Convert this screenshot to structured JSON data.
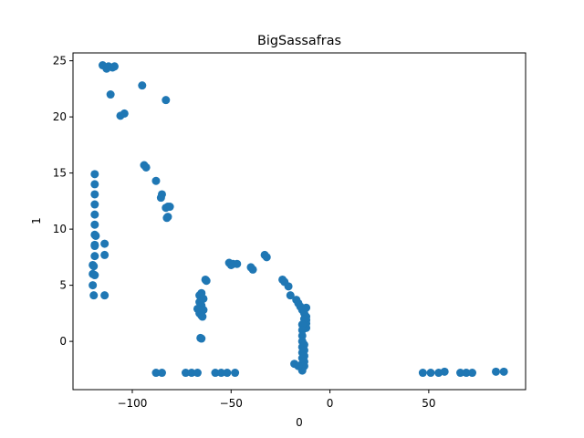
{
  "chart_data": {
    "type": "scatter",
    "title": "BigSassafras",
    "xlabel": "0",
    "ylabel": "1",
    "xlim": [
      -130,
      99
    ],
    "ylim": [
      -4.3,
      25.7
    ],
    "xticks": [
      -100,
      -50,
      0,
      50
    ],
    "yticks": [
      0,
      5,
      10,
      15,
      20,
      25
    ],
    "grid": false,
    "color": "#1f77b4",
    "points": [
      [
        -115,
        24.6
      ],
      [
        -113,
        24.3
      ],
      [
        -112,
        24.5
      ],
      [
        -110,
        24.4
      ],
      [
        -109,
        24.5
      ],
      [
        -111,
        22.0
      ],
      [
        -106,
        20.1
      ],
      [
        -104,
        20.3
      ],
      [
        -95,
        22.8
      ],
      [
        -83,
        21.5
      ],
      [
        -119,
        14.9
      ],
      [
        -119,
        14.0
      ],
      [
        -119,
        13.1
      ],
      [
        -119,
        12.2
      ],
      [
        -119,
        11.3
      ],
      [
        -119,
        10.4
      ],
      [
        -119,
        9.5
      ],
      [
        -118.5,
        9.4
      ],
      [
        -119,
        8.6
      ],
      [
        -119,
        8.5
      ],
      [
        -119,
        7.6
      ],
      [
        -120,
        6.8
      ],
      [
        -119.5,
        6.7
      ],
      [
        -120,
        6.0
      ],
      [
        -119,
        5.9
      ],
      [
        -120,
        5.0
      ],
      [
        -119.5,
        4.1
      ],
      [
        -114,
        4.1
      ],
      [
        -114,
        8.7
      ],
      [
        -114,
        7.7
      ],
      [
        -94,
        15.7
      ],
      [
        -93,
        15.5
      ],
      [
        -88,
        14.3
      ],
      [
        -85,
        13.1
      ],
      [
        -85.5,
        12.8
      ],
      [
        -82,
        12.0
      ],
      [
        -83,
        11.9
      ],
      [
        -81,
        12.0
      ],
      [
        -82.5,
        11.0
      ],
      [
        -82,
        11.1
      ],
      [
        -51,
        7.0
      ],
      [
        -49,
        6.9
      ],
      [
        -47,
        6.9
      ],
      [
        -50,
        6.8
      ],
      [
        -40,
        6.6
      ],
      [
        -39,
        6.4
      ],
      [
        -33,
        7.7
      ],
      [
        -32,
        7.5
      ],
      [
        -24,
        5.5
      ],
      [
        -23,
        5.3
      ],
      [
        -21,
        4.9
      ],
      [
        -20,
        4.1
      ],
      [
        -63,
        5.5
      ],
      [
        -62.5,
        5.4
      ],
      [
        -65,
        4.3
      ],
      [
        -66,
        4.1
      ],
      [
        -64,
        3.8
      ],
      [
        -66,
        3.5
      ],
      [
        -65,
        3.2
      ],
      [
        -67,
        2.9
      ],
      [
        -64,
        2.8
      ],
      [
        -66,
        2.5
      ],
      [
        -65,
        2.3
      ],
      [
        -64.5,
        2.2
      ],
      [
        -65.5,
        0.3
      ],
      [
        -65,
        0.25
      ],
      [
        -17,
        3.7
      ],
      [
        -16,
        3.4
      ],
      [
        -15,
        3.1
      ],
      [
        -14,
        2.8
      ],
      [
        -13,
        2.5
      ],
      [
        -12,
        3.0
      ],
      [
        -12,
        2.2
      ],
      [
        -12,
        1.9
      ],
      [
        -12,
        1.6
      ],
      [
        -12,
        1.2
      ],
      [
        -13,
        2.0
      ],
      [
        -14,
        1.5
      ],
      [
        -14,
        1.0
      ],
      [
        -14,
        0.5
      ],
      [
        -14,
        0.0
      ],
      [
        -14,
        -0.5
      ],
      [
        -14,
        -1.0
      ],
      [
        -14,
        -1.5
      ],
      [
        -14,
        -2.0
      ],
      [
        -14,
        -2.3
      ],
      [
        -14,
        -2.6
      ],
      [
        -13,
        -0.3
      ],
      [
        -13,
        -0.8
      ],
      [
        -13,
        -1.3
      ],
      [
        -13,
        -1.8
      ],
      [
        -13,
        -2.2
      ],
      [
        -18,
        -2.0
      ],
      [
        -16,
        -2.2
      ],
      [
        -88,
        -2.8
      ],
      [
        -85,
        -2.8
      ],
      [
        -73,
        -2.8
      ],
      [
        -70,
        -2.8
      ],
      [
        -67,
        -2.8
      ],
      [
        -58,
        -2.8
      ],
      [
        -55,
        -2.8
      ],
      [
        -52,
        -2.8
      ],
      [
        -48,
        -2.8
      ],
      [
        47,
        -2.8
      ],
      [
        51,
        -2.8
      ],
      [
        55,
        -2.8
      ],
      [
        58,
        -2.7
      ],
      [
        66,
        -2.8
      ],
      [
        69,
        -2.8
      ],
      [
        72,
        -2.8
      ],
      [
        84,
        -2.7
      ],
      [
        88,
        -2.7
      ]
    ]
  }
}
